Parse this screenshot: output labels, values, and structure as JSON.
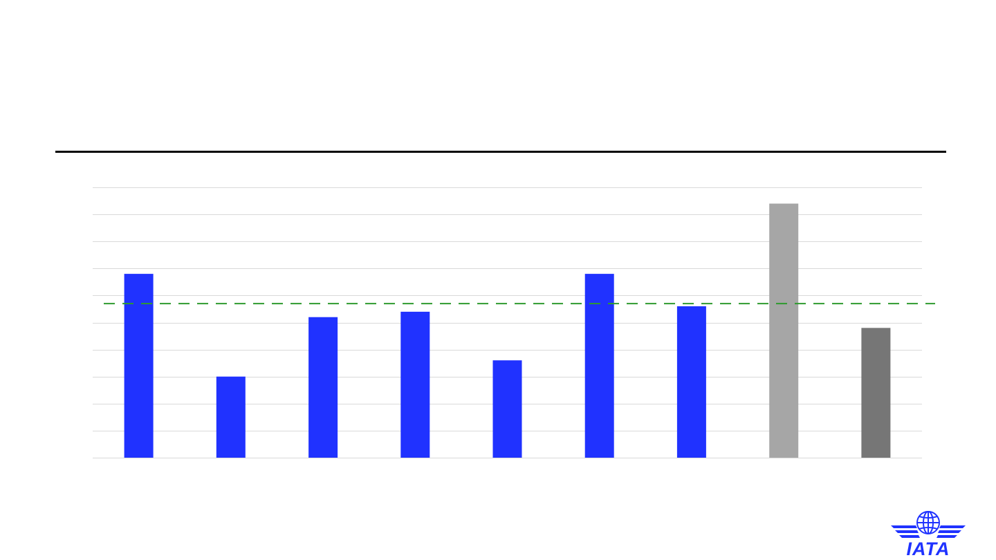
{
  "slide": {
    "logo_text": "IATA"
  },
  "colors": {
    "bar_primary": "#2032ff",
    "bar_light_grey": "#a6a6a6",
    "bar_dark_grey": "#767676",
    "reference_line": "#2e9b2e",
    "gridline": "#d9d9d9",
    "logo": "#1f32ff"
  },
  "chart_data": {
    "type": "bar",
    "title": "",
    "xlabel": "",
    "ylabel": "",
    "ylim": [
      0,
      10
    ],
    "gridlines": true,
    "grid_step": 1,
    "values": [
      6.8,
      3.0,
      5.2,
      5.4,
      3.6,
      6.8,
      5.6,
      9.4,
      4.8
    ],
    "bar_colors": [
      "#2032ff",
      "#2032ff",
      "#2032ff",
      "#2032ff",
      "#2032ff",
      "#2032ff",
      "#2032ff",
      "#a6a6a6",
      "#767676"
    ],
    "reference_line": {
      "value": 5.7,
      "style": "dashed",
      "color": "#2e9b2e"
    }
  }
}
